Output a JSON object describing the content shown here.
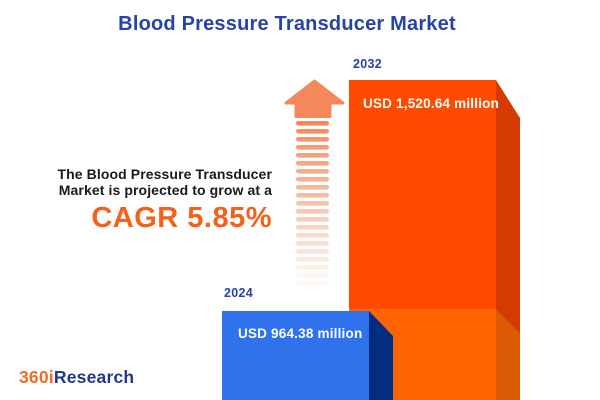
{
  "title": "Blood Pressure Transducer Market",
  "description": {
    "line1": "The Blood Pressure Transducer",
    "line2": "Market is projected to grow at a",
    "cagr": "CAGR 5.85%"
  },
  "bars": {
    "y2024": {
      "year": "2024",
      "value_label": "USD 964.38 million"
    },
    "y2032": {
      "year": "2032",
      "value_label": "USD 1,520.64 million"
    }
  },
  "logo": {
    "part1": "360i",
    "part2": "Research"
  },
  "colors": {
    "title_blue": "#2643A5",
    "cagr_orange": "#F4611B",
    "text_dark": "#1A1A1A",
    "bar_2024_face": "#2F72EC",
    "bar_2024_side": "#032E80",
    "bar_2032_face": "#FF4A00",
    "bar_2032_side": "#D43B02",
    "bar_2032_base_face": "#FF6200",
    "bar_2032_base_side": "#DD5A05",
    "arrow": "#F4885A",
    "arrow_dash": "#F28A5E",
    "logo_orange": "#F26B21",
    "logo_navy": "#24368F"
  },
  "chart_data": {
    "type": "bar",
    "title": "Blood Pressure Transducer Market",
    "categories": [
      "2024",
      "2032"
    ],
    "values": [
      964.38,
      1520.64
    ],
    "unit": "USD million",
    "value_labels": [
      "USD 964.38 million",
      "USD 1,520.64 million"
    ],
    "annotations": [
      "The Blood Pressure Transducer Market is projected to grow at a CAGR 5.85%"
    ],
    "legend": "none",
    "grid": false,
    "style": "3d-infographic-columns"
  }
}
